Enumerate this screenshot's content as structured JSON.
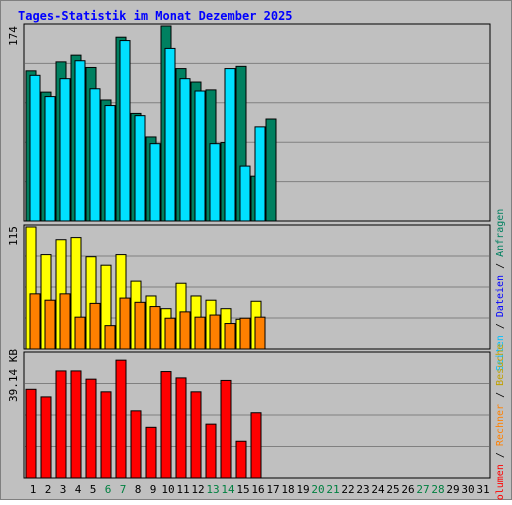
{
  "title": "Tages-Statistik im Monat Dezember 2025",
  "colors": {
    "background": "#c0c0c0",
    "title": "#0000ff",
    "grid": "#808080",
    "anfragen": "#008060",
    "dateien": "#00e0ff",
    "seiten": "#00c0ff",
    "besuche": "#ffff00",
    "rechner": "#ff8000",
    "volumen": "#ff0000",
    "weekend_label": "#008040",
    "day_label": "#000000"
  },
  "chart_data": [
    {
      "type": "bar",
      "panel": "hits-files",
      "categories": [
        "1",
        "2",
        "3",
        "4",
        "5",
        "6",
        "7",
        "8",
        "9",
        "10",
        "11",
        "12",
        "13",
        "14",
        "15",
        "16",
        "17",
        "18",
        "19",
        "20",
        "21",
        "22",
        "23",
        "24",
        "25",
        "26",
        "27",
        "28",
        "29",
        "30",
        "31"
      ],
      "ylabel": "174",
      "ylim": [
        0,
        174
      ],
      "grid": true,
      "series": [
        {
          "name": "Anfragen",
          "values": [
            134,
            115,
            142,
            148,
            137,
            108,
            164,
            96,
            75,
            174,
            136,
            124,
            117,
            70,
            138,
            40,
            91,
            null,
            null,
            null,
            null,
            null,
            null,
            null,
            null,
            null,
            null,
            null,
            null,
            null,
            null
          ]
        },
        {
          "name": "Dateien",
          "values": [
            130,
            111,
            127,
            143,
            118,
            103,
            161,
            94,
            69,
            154,
            127,
            116,
            69,
            136,
            49,
            84,
            null,
            null,
            null,
            null,
            null,
            null,
            null,
            null,
            null,
            null,
            null,
            null,
            null,
            null,
            null
          ]
        }
      ]
    },
    {
      "type": "bar",
      "panel": "visits",
      "categories": [
        "1",
        "2",
        "3",
        "4",
        "5",
        "6",
        "7",
        "8",
        "9",
        "10",
        "11",
        "12",
        "13",
        "14",
        "15",
        "16",
        "17",
        "18",
        "19",
        "20",
        "21",
        "22",
        "23",
        "24",
        "25",
        "26",
        "27",
        "28",
        "29",
        "30",
        "31"
      ],
      "ylabel": "115",
      "ylim": [
        0,
        115
      ],
      "grid": true,
      "series": [
        {
          "name": "Besuche",
          "values": [
            115,
            89,
            103,
            105,
            87,
            79,
            89,
            64,
            50,
            38,
            62,
            50,
            46,
            38,
            28,
            45,
            null,
            null,
            null,
            null,
            null,
            null,
            null,
            null,
            null,
            null,
            null,
            null,
            null,
            null,
            null
          ]
        },
        {
          "name": "Rechner",
          "values": [
            52,
            46,
            52,
            30,
            43,
            22,
            48,
            44,
            40,
            29,
            35,
            30,
            32,
            24,
            29,
            30,
            null,
            null,
            null,
            null,
            null,
            null,
            null,
            null,
            null,
            null,
            null,
            null,
            null,
            null,
            null
          ]
        }
      ]
    },
    {
      "type": "bar",
      "panel": "volume",
      "categories": [
        "1",
        "2",
        "3",
        "4",
        "5",
        "6",
        "7",
        "8",
        "9",
        "10",
        "11",
        "12",
        "13",
        "14",
        "15",
        "16",
        "17",
        "18",
        "19",
        "20",
        "21",
        "22",
        "23",
        "24",
        "25",
        "26",
        "27",
        "28",
        "29",
        "30",
        "31"
      ],
      "ylabel": "39.14 KB",
      "ylim": [
        0,
        39.14
      ],
      "grid": true,
      "series": [
        {
          "name": "Volumen",
          "values": [
            28.0,
            25.6,
            33.8,
            33.8,
            31.2,
            27.2,
            37.2,
            21.2,
            16.0,
            33.6,
            31.6,
            27.2,
            17.0,
            30.8,
            11.6,
            20.6,
            null,
            null,
            null,
            null,
            null,
            null,
            null,
            null,
            null,
            null,
            null,
            null,
            null,
            null,
            null
          ]
        }
      ]
    }
  ],
  "day_labels": [
    "1",
    "2",
    "3",
    "4",
    "5",
    "6",
    "7",
    "8",
    "9",
    "10",
    "11",
    "12",
    "13",
    "14",
    "15",
    "16",
    "17",
    "18",
    "19",
    "20",
    "21",
    "22",
    "23",
    "24",
    "25",
    "26",
    "27",
    "28",
    "29",
    "30",
    "31"
  ],
  "weekend_days": [
    "6",
    "7",
    "13",
    "14",
    "20",
    "21",
    "27",
    "28"
  ],
  "legend": {
    "bottom": {
      "volumen": "Volumen",
      "sep1": " / ",
      "rechner": "Rechner",
      "sep2": " / ",
      "besuche": "Besuche"
    },
    "middle": {
      "seiten": "Seiten",
      "sep1": " / ",
      "dateien": "Dateien",
      "sep2": " / ",
      "anfragen": "Anfragen"
    }
  }
}
